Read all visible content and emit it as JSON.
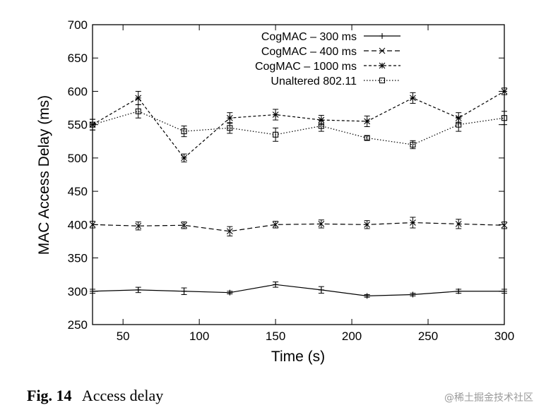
{
  "chart_data": {
    "type": "line",
    "xlabel": "Time (s)",
    "ylabel": "MAC Access Delay (ms)",
    "xlim": [
      30,
      300
    ],
    "ylim": [
      250,
      700
    ],
    "x_ticks": [
      50,
      100,
      150,
      200,
      250,
      300
    ],
    "y_ticks": [
      250,
      300,
      350,
      400,
      450,
      500,
      550,
      600,
      650,
      700
    ],
    "grid": false,
    "legend_position": "top-right",
    "x": [
      30,
      60,
      90,
      120,
      150,
      180,
      210,
      240,
      270,
      300
    ],
    "series": [
      {
        "name": "CogMAC – 300 ms",
        "line": "solid",
        "marker": "plus",
        "values": [
          300,
          302,
          300,
          298,
          310,
          302,
          293,
          295,
          300,
          300
        ],
        "errors": [
          3,
          4,
          5,
          2,
          4,
          5,
          2,
          2,
          3,
          3
        ]
      },
      {
        "name": "CogMAC – 400 ms",
        "line": "dashed",
        "marker": "cross",
        "values": [
          400,
          398,
          399,
          390,
          400,
          401,
          400,
          403,
          401,
          399
        ],
        "errors": [
          5,
          6,
          5,
          7,
          5,
          6,
          6,
          8,
          7,
          5
        ]
      },
      {
        "name": "CogMAC – 1000 ms",
        "line": "short-dashed",
        "marker": "star",
        "values": [
          550,
          590,
          500,
          560,
          565,
          557,
          555,
          590,
          560,
          600
        ],
        "errors": [
          8,
          10,
          6,
          8,
          8,
          7,
          8,
          8,
          8,
          5
        ]
      },
      {
        "name": "Unaltered 802.11",
        "line": "dotted",
        "marker": "square",
        "values": [
          550,
          570,
          540,
          545,
          535,
          548,
          530,
          520,
          550,
          560
        ],
        "errors": [
          8,
          10,
          8,
          8,
          10,
          8,
          3,
          6,
          10,
          10
        ]
      }
    ]
  },
  "caption": {
    "label": "Fig. 14",
    "text": "Access delay"
  },
  "watermark": "@稀土掘金技术社区"
}
